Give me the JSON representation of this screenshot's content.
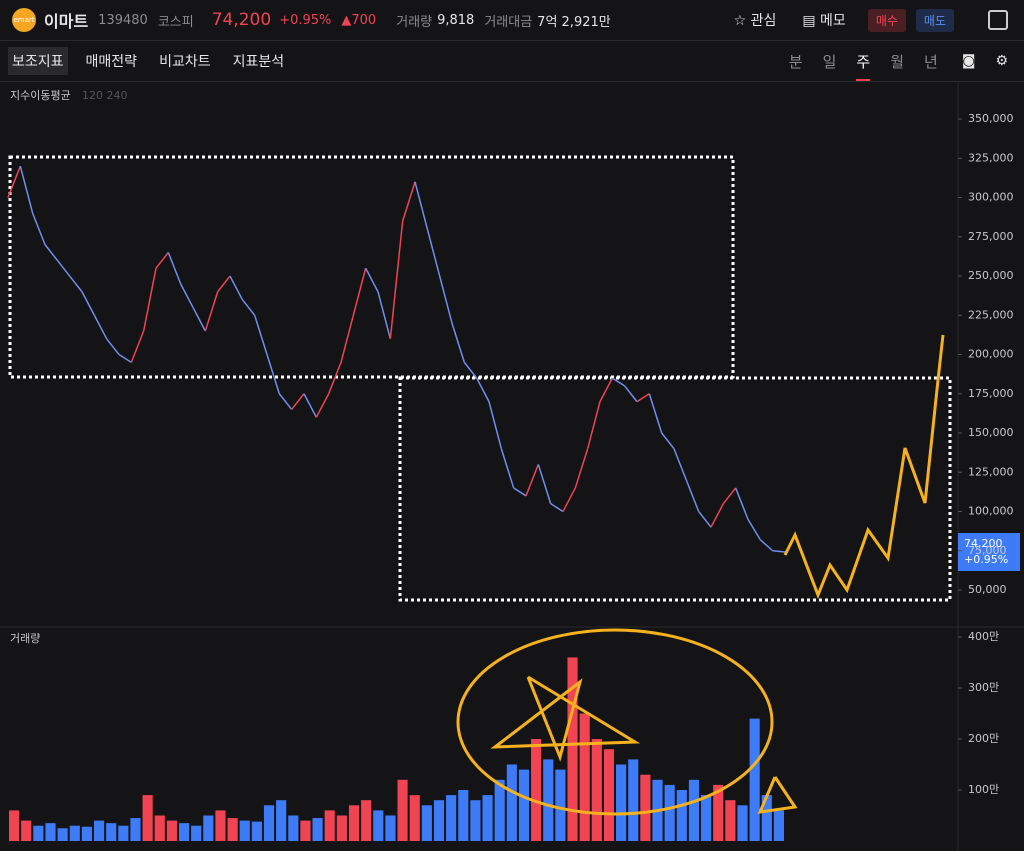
{
  "header": {
    "logo": "emart",
    "name": "이마트",
    "code": "139480",
    "market": "코스피",
    "price": "74,200",
    "change_pct": "+0.95%",
    "change": "700",
    "volume_label": "거래량",
    "volume": "9,818",
    "amount_label": "거래대금",
    "amount": "7억 2,921만",
    "watch": "관심",
    "memo": "메모",
    "buy": "매수",
    "sell": "매도"
  },
  "toolbar": {
    "tools": [
      "보조지표",
      "매매전략",
      "비교차트",
      "지표분석"
    ],
    "periods": [
      "분",
      "일",
      "주",
      "월",
      "년"
    ]
  },
  "chart_data": [
    {
      "type": "line",
      "title": "지수이동평균",
      "subtitle": "120 240",
      "color": "#6f8ff0",
      "values": [
        300000,
        320000,
        290000,
        270000,
        260000,
        250000,
        240000,
        225000,
        210000,
        200000,
        195000,
        215000,
        255000,
        265000,
        245000,
        230000,
        215000,
        240000,
        250000,
        235000,
        225000,
        200000,
        175000,
        165000,
        175000,
        160000,
        175000,
        195000,
        225000,
        255000,
        240000,
        210000,
        285000,
        310000,
        280000,
        250000,
        220000,
        195000,
        185000,
        170000,
        140000,
        115000,
        110000,
        130000,
        105000,
        100000,
        115000,
        140000,
        170000,
        185000,
        180000,
        170000,
        175000,
        150000,
        140000,
        120000,
        100000,
        90000,
        105000,
        115000,
        95000,
        82000,
        75000,
        74200
      ],
      "ylim": [
        27700,
        371700
      ],
      "yticks": [
        {
          "value": 350000,
          "label": "350,000"
        },
        {
          "value": 325000,
          "label": "325,000"
        },
        {
          "value": 300000,
          "label": "300,000"
        },
        {
          "value": 275000,
          "label": "275,000"
        },
        {
          "value": 250000,
          "label": "250,000"
        },
        {
          "value": 225000,
          "label": "225,000"
        },
        {
          "value": 200000,
          "label": "200,000"
        },
        {
          "value": 175000,
          "label": "175,000"
        },
        {
          "value": 150000,
          "label": "150,000"
        },
        {
          "value": 125000,
          "label": "125,000"
        },
        {
          "value": 100000,
          "label": "100,000"
        },
        {
          "value": 75000,
          "label": "75,000"
        },
        {
          "value": 50000,
          "label": "50,000"
        }
      ]
    },
    {
      "type": "bar",
      "title": "거래량",
      "values": [
        600000,
        400000,
        300000,
        350000,
        250000,
        300000,
        280000,
        400000,
        350000,
        300000,
        450000,
        900000,
        500000,
        400000,
        350000,
        300000,
        500000,
        600000,
        450000,
        400000,
        380000,
        700000,
        800000,
        500000,
        400000,
        450000,
        600000,
        500000,
        700000,
        800000,
        600000,
        500000,
        1200000,
        900000,
        700000,
        800000,
        900000,
        1000000,
        800000,
        900000,
        1200000,
        1500000,
        1400000,
        2000000,
        1600000,
        1400000,
        3600000,
        2500000,
        2000000,
        1800000,
        1500000,
        1600000,
        1300000,
        1200000,
        1100000,
        1000000,
        1200000,
        900000,
        1100000,
        800000,
        700000,
        2400000,
        900000,
        600000
      ],
      "ylim": [
        0,
        4000000
      ],
      "yticks": [
        {
          "value": 4000000,
          "label": "400만"
        },
        {
          "value": 3000000,
          "label": "300만"
        },
        {
          "value": 2000000,
          "label": "200만"
        },
        {
          "value": 1000000,
          "label": "100만"
        }
      ]
    }
  ]
}
